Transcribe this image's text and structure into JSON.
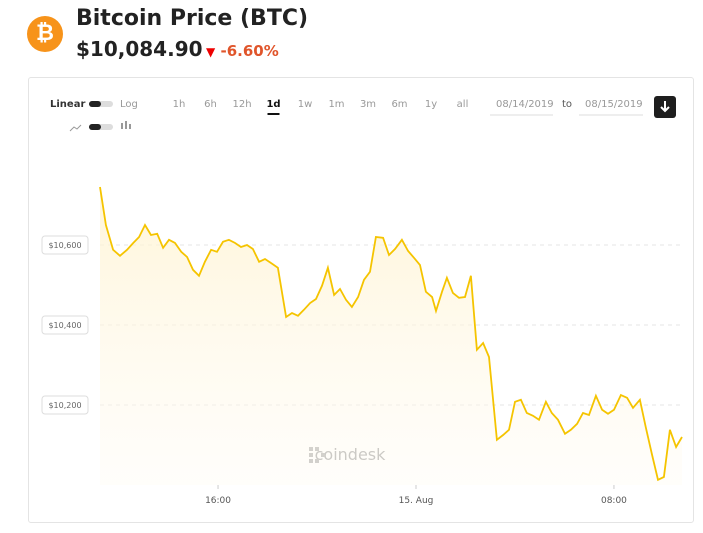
{
  "header": {
    "icon": "₿",
    "title": "Bitcoin Price",
    "symbol": "(BTC)",
    "price": "$10,084.90",
    "change": "-6.60%"
  },
  "controls": {
    "scales": [
      "Linear",
      "Log"
    ],
    "ranges": [
      "1h",
      "6h",
      "12h",
      "1d",
      "1w",
      "1m",
      "3m",
      "6m",
      "1y",
      "all"
    ],
    "selected": "1d",
    "from": "08/14/2019",
    "to_label": "to",
    "to": "08/15/2019"
  },
  "watermark": "coindesk",
  "chart_data": {
    "type": "line",
    "color": "#f5c400",
    "grid": true,
    "x": [
      11.23,
      11.47,
      11.76,
      12.04,
      12.32,
      12.57,
      12.81,
      13.05,
      13.29,
      13.54,
      13.78,
      14.02,
      14.26,
      14.51,
      14.75,
      14.99,
      15.23,
      15.47,
      15.72,
      15.96,
      16.2,
      16.44,
      16.69,
      16.93,
      17.17,
      17.41,
      17.66,
      17.9,
      18.14,
      18.42,
      18.75,
      18.99,
      19.23,
      19.47,
      19.72,
      19.96,
      20.2,
      20.44,
      20.69,
      20.93,
      21.17,
      21.41,
      21.66,
      21.9,
      22.14,
      22.38,
      22.67,
      22.91,
      23.15,
      23.43,
      23.68,
      23.92,
      24.16,
      24.4,
      24.65,
      24.81,
      25.05,
      25.25,
      25.49,
      25.74,
      25.98,
      26.22,
      26.46,
      26.71,
      26.95,
      27.27,
      27.52,
      27.76,
      28.0,
      28.24,
      28.48,
      28.73,
      28.97,
      29.25,
      29.49,
      29.74,
      30.02,
      30.26,
      30.51,
      30.75,
      30.99,
      31.27,
      31.52,
      31.76,
      32.0,
      32.28,
      32.53,
      32.77,
      33.05,
      33.29,
      33.54,
      33.78,
      34.02,
      34.26,
      34.51,
      34.75
    ],
    "values": [
      10745,
      10650,
      10588,
      10573,
      10588,
      10605,
      10620,
      10650,
      10625,
      10628,
      10593,
      10613,
      10605,
      10583,
      10570,
      10538,
      10523,
      10558,
      10588,
      10583,
      10608,
      10613,
      10605,
      10595,
      10600,
      10590,
      10558,
      10565,
      10555,
      10543,
      10420,
      10430,
      10423,
      10438,
      10455,
      10465,
      10498,
      10543,
      10475,
      10490,
      10463,
      10445,
      10470,
      10513,
      10533,
      10620,
      10618,
      10575,
      10590,
      10613,
      10585,
      10568,
      10550,
      10483,
      10470,
      10435,
      10483,
      10518,
      10480,
      10468,
      10470,
      10523,
      10338,
      10355,
      10320,
      10113,
      10125,
      10138,
      10208,
      10213,
      10180,
      10173,
      10163,
      10208,
      10180,
      10163,
      10128,
      10138,
      10153,
      10180,
      10175,
      10223,
      10188,
      10178,
      10188,
      10225,
      10218,
      10193,
      10213,
      10143,
      10075,
      10013,
      10020,
      10138,
      10095,
      10120
    ],
    "xlim": [
      11.23,
      34.75
    ],
    "ylim": [
      10000,
      10850
    ],
    "xticks": [
      {
        "value": 16,
        "label": "16:00"
      },
      {
        "value": 24,
        "label": "15. Aug"
      },
      {
        "value": 32,
        "label": "08:00"
      }
    ],
    "yticks": [
      {
        "value": 10200,
        "label": "$10,200"
      },
      {
        "value": 10400,
        "label": "$10,400"
      },
      {
        "value": 10600,
        "label": "$10,600"
      }
    ]
  }
}
